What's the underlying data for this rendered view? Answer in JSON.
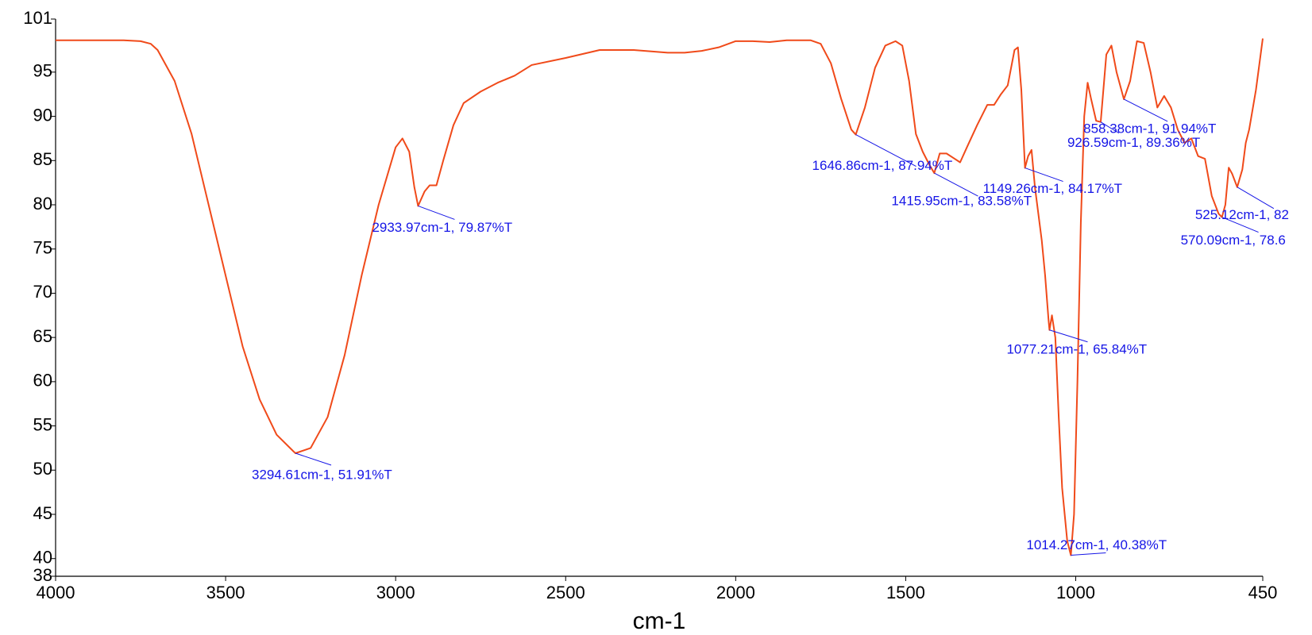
{
  "chart_data": {
    "type": "line",
    "x_label": "cm-1",
    "xlim": [
      4000,
      450
    ],
    "xticks": [
      4000,
      3500,
      3000,
      2500,
      2000,
      1500,
      1000,
      450
    ],
    "ylim": [
      38,
      101
    ],
    "yticks": [
      38,
      40,
      45,
      50,
      55,
      60,
      65,
      70,
      75,
      80,
      85,
      90,
      95,
      101
    ],
    "grid": false,
    "color": "#f04a1a",
    "x": [
      4000,
      3800,
      3750,
      3720,
      3700,
      3650,
      3600,
      3550,
      3500,
      3450,
      3400,
      3350,
      3300,
      3294.61,
      3250,
      3200,
      3150,
      3100,
      3050,
      3000,
      2980,
      2960,
      2945,
      2933.97,
      2915,
      2900,
      2880,
      2860,
      2830,
      2800,
      2750,
      2700,
      2650,
      2600,
      2500,
      2400,
      2300,
      2200,
      2150,
      2100,
      2050,
      2000,
      1950,
      1900,
      1850,
      1780,
      1750,
      1720,
      1690,
      1660,
      1646.86,
      1620,
      1590,
      1560,
      1530,
      1510,
      1490,
      1470,
      1450,
      1430,
      1415.95,
      1400,
      1380,
      1360,
      1340,
      1320,
      1290,
      1260,
      1240,
      1220,
      1200,
      1180,
      1170,
      1160,
      1149.26,
      1140,
      1130,
      1120,
      1100,
      1090,
      1080,
      1077.21,
      1070,
      1060,
      1050,
      1040,
      1025,
      1014.27,
      1005,
      995,
      985,
      975,
      965,
      955,
      940,
      926.59,
      910,
      895,
      880,
      858.38,
      840,
      820,
      800,
      780,
      760,
      740,
      720,
      700,
      680,
      660,
      640,
      620,
      600,
      580,
      570.09,
      560,
      550,
      540,
      525.12,
      510,
      500,
      490,
      470,
      450
    ],
    "values": [
      98.6,
      98.6,
      98.5,
      98.2,
      97.5,
      94,
      88,
      80,
      72,
      64,
      58,
      54,
      52.1,
      51.91,
      52.5,
      56,
      63,
      72,
      80,
      86.5,
      87.5,
      86,
      82,
      79.87,
      81.5,
      82.2,
      82.2,
      85,
      89,
      91.5,
      92.8,
      93.8,
      94.6,
      95.8,
      96.6,
      97.5,
      97.5,
      97.2,
      97.2,
      97.4,
      97.8,
      98.5,
      98.5,
      98.4,
      98.6,
      98.6,
      98.2,
      96,
      92,
      88.5,
      87.94,
      91,
      95.5,
      98,
      98.5,
      98,
      94,
      88,
      86,
      84.5,
      83.58,
      85.8,
      85.8,
      85.3,
      84.8,
      86.5,
      89,
      91.3,
      91.3,
      92.5,
      93.5,
      97.5,
      97.8,
      93,
      84.17,
      85.5,
      86.2,
      82,
      76,
      72,
      67,
      65.84,
      67.5,
      65,
      56,
      48,
      42,
      40.38,
      45,
      60,
      78,
      90,
      93.8,
      92,
      89.5,
      89.36,
      97,
      98,
      95,
      91.94,
      94,
      98.5,
      98.3,
      95,
      91,
      92.3,
      91,
      88.5,
      87,
      87.5,
      85.5,
      85.2,
      81,
      79,
      78.6,
      80,
      84.2,
      83.5,
      82,
      84,
      87,
      88.5,
      93,
      98.8
    ],
    "annotations": [
      {
        "label": "3294.61cm-1, 51.91%T",
        "x": 3294.61,
        "y": 51.91
      },
      {
        "label": "2933.97cm-1, 79.87%T",
        "x": 2933.97,
        "y": 79.87
      },
      {
        "label": "1646.86cm-1, 87.94%T",
        "x": 1646.86,
        "y": 87.94
      },
      {
        "label": "1415.95cm-1, 83.58%T",
        "x": 1415.95,
        "y": 83.58
      },
      {
        "label": "1149.26cm-1, 84.17%T",
        "x": 1149.26,
        "y": 84.17
      },
      {
        "label": "1077.21cm-1, 65.84%T",
        "x": 1077.21,
        "y": 65.84
      },
      {
        "label": "1014.27cm-1, 40.38%T",
        "x": 1014.27,
        "y": 40.38
      },
      {
        "label": "926.59cm-1, 89.36%T",
        "x": 926.59,
        "y": 89.36
      },
      {
        "label": "858.38cm-1, 91.94%T",
        "x": 858.38,
        "y": 91.94
      },
      {
        "label": "570.09cm-1, 78.6",
        "x": 570.09,
        "y": 78.6
      },
      {
        "label": "525.12cm-1, 82",
        "x": 525.12,
        "y": 82
      }
    ]
  }
}
